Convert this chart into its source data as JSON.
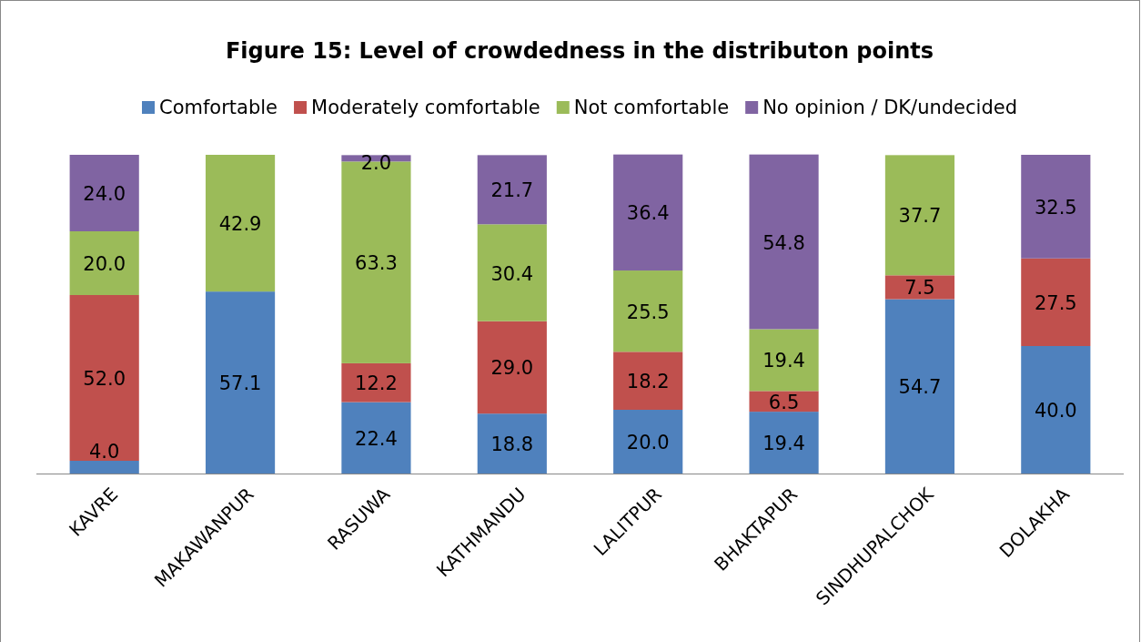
{
  "chart_data": {
    "type": "bar",
    "title": "Figure 15: Level of  crowdedness in the distributon points",
    "categories": [
      "KAVRE",
      "MAKAWANPUR",
      "RASUWA",
      "KATHMANDU",
      "LALITPUR",
      "BHAKTAPUR",
      "SINDHUPALCHOK",
      "DOLAKHA"
    ],
    "series": [
      {
        "name": "Comfortable",
        "color": "#4f81bd",
        "values": [
          4.0,
          57.1,
          22.4,
          18.8,
          20.0,
          19.4,
          54.7,
          40.0
        ],
        "value_labels": [
          "4.0",
          "57.1",
          "22.4",
          "18.8",
          "20.0",
          "19.4",
          "54.7",
          "40.0"
        ]
      },
      {
        "name": "Moderately comfortable",
        "color": "#c0504d",
        "values": [
          52.0,
          null,
          12.2,
          29.0,
          18.2,
          6.5,
          7.5,
          27.5
        ],
        "value_labels": [
          "52.0",
          null,
          "12.2",
          "29.0",
          "18.2",
          "6.5",
          "7.5",
          "27.5"
        ]
      },
      {
        "name": "Not comfortable",
        "color": "#9bbb59",
        "values": [
          20.0,
          42.9,
          63.3,
          30.4,
          25.5,
          19.4,
          37.7,
          null
        ],
        "value_labels": [
          "20.0",
          "42.9",
          "63.3",
          "30.4",
          "25.5",
          "19.4",
          "37.7",
          null
        ]
      },
      {
        "name": "No opinion / DK/undecided",
        "color": "#8064a2",
        "values": [
          24.0,
          null,
          2.0,
          21.7,
          36.4,
          54.8,
          null,
          32.5
        ],
        "value_labels": [
          "24.0",
          null,
          "2.0",
          "21.7",
          "36.4",
          "54.8",
          null,
          "32.5"
        ]
      }
    ],
    "stacked": true,
    "ylim": [
      0,
      100
    ],
    "tick_labels": "x",
    "legend": "top",
    "grid": false
  }
}
